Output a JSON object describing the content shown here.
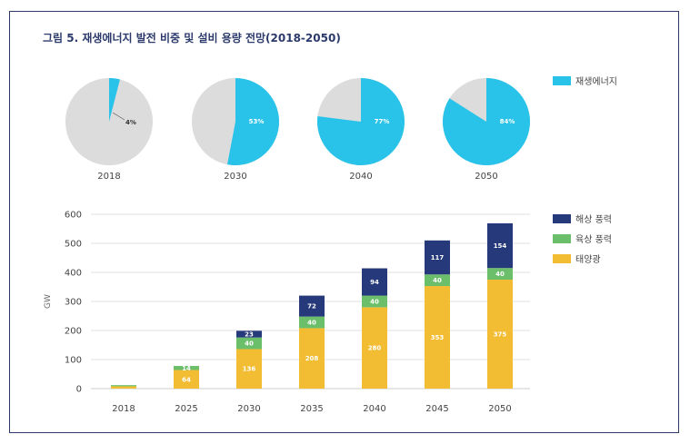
{
  "title": "그림 5. 재생에너지 발전 비중 및 설비 용량 전망(2018-2050)",
  "colors": {
    "renewable": "#29c3ea",
    "rest": "#dcdcdc",
    "offshore_wind": "#26397a",
    "onshore_wind": "#6cbf6a",
    "solar": "#f2bd33",
    "frame": "#2b3a6b"
  },
  "chart_data": [
    {
      "type": "pie",
      "legend": [
        "재생에너지"
      ],
      "legend_position": "right",
      "charts": [
        {
          "label": "2018",
          "value": 4,
          "value_label": "4%"
        },
        {
          "label": "2030",
          "value": 53,
          "value_label": "53%"
        },
        {
          "label": "2040",
          "value": 77,
          "value_label": "77%"
        },
        {
          "label": "2050",
          "value": 84,
          "value_label": "84%"
        }
      ]
    },
    {
      "type": "bar",
      "stacked": true,
      "categories": [
        "2018",
        "2025",
        "2030",
        "2035",
        "2040",
        "2045",
        "2050"
      ],
      "series": [
        {
          "name": "태양광",
          "values": [
            8,
            64,
            136,
            208,
            280,
            353,
            375
          ],
          "labels": [
            "",
            "64",
            "136",
            "208",
            "280",
            "353",
            "375"
          ]
        },
        {
          "name": "육상 풍력",
          "values": [
            4,
            14,
            40,
            40,
            40,
            40,
            40
          ],
          "labels": [
            "",
            "14",
            "40",
            "40",
            "40",
            "40",
            "40"
          ]
        },
        {
          "name": "해상 풍력",
          "values": [
            0,
            0,
            23,
            72,
            94,
            117,
            154
          ],
          "labels": [
            "",
            "",
            "23",
            "72",
            "94",
            "117",
            "154"
          ]
        }
      ],
      "legend_order": [
        "해상 풍력",
        "육상 풍력",
        "태양광"
      ],
      "legend_position": "right",
      "ylabel": "GW",
      "ylim": [
        0,
        600
      ],
      "yticks": [
        "0",
        "100",
        "200",
        "300",
        "400",
        "500",
        "600"
      ],
      "grid": true
    }
  ]
}
